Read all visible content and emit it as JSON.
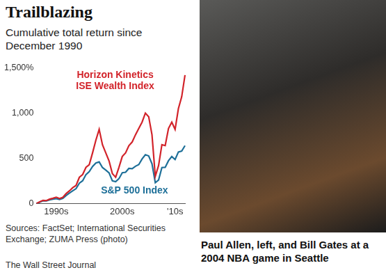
{
  "chart_data": {
    "type": "line",
    "title": "Trailblazing",
    "subtitle": "Cumulative total return since December 1990",
    "categories": [
      null,
      null,
      null,
      null,
      null,
      null,
      "1990s",
      null,
      null,
      null,
      null,
      null,
      null,
      null,
      null,
      null,
      null,
      null,
      null,
      null,
      null,
      null,
      null,
      null,
      null,
      null,
      "2000s",
      null,
      null,
      null,
      null,
      null,
      null,
      null,
      null,
      null,
      null,
      null,
      null,
      null,
      null,
      null,
      "'10s",
      null,
      null,
      null
    ],
    "series": [
      {
        "name": "Horizon Kinetics ISE Wealth Index",
        "color": "#d2232a",
        "values": [
          0,
          18,
          35,
          32,
          48,
          58,
          70,
          55,
          68,
          110,
          140,
          175,
          200,
          290,
          320,
          400,
          430,
          560,
          700,
          820,
          650,
          560,
          470,
          330,
          290,
          400,
          520,
          560,
          640,
          680,
          760,
          830,
          900,
          1000,
          960,
          760,
          300,
          420,
          650,
          640,
          830,
          900,
          820,
          1050,
          1180,
          1420
        ]
      },
      {
        "name": "S&P 500 Index",
        "color": "#1d6f98",
        "values": [
          0,
          15,
          30,
          28,
          40,
          47,
          54,
          45,
          56,
          88,
          115,
          140,
          164,
          225,
          252,
          320,
          353,
          410,
          448,
          460,
          398,
          370,
          339,
          250,
          242,
          275,
          340,
          345,
          388,
          385,
          412,
          430,
          493,
          540,
          526,
          440,
          230,
          260,
          398,
          400,
          473,
          520,
          486,
          570,
          580,
          640
        ]
      }
    ],
    "ylim": [
      0,
      1500
    ],
    "yticks": [
      0,
      500,
      {
        "value": 1000,
        "label": "1,000"
      },
      {
        "value": 1500,
        "label": "1,500%"
      }
    ],
    "grid": false
  },
  "source": "Sources: FactSet; International Securities Exchange; ZUMA Press (photo)",
  "credit": "The Wall Street Journal",
  "photo": {
    "caption": "Paul Allen, left, and Bill Gates at a 2004 NBA game in Seattle"
  }
}
